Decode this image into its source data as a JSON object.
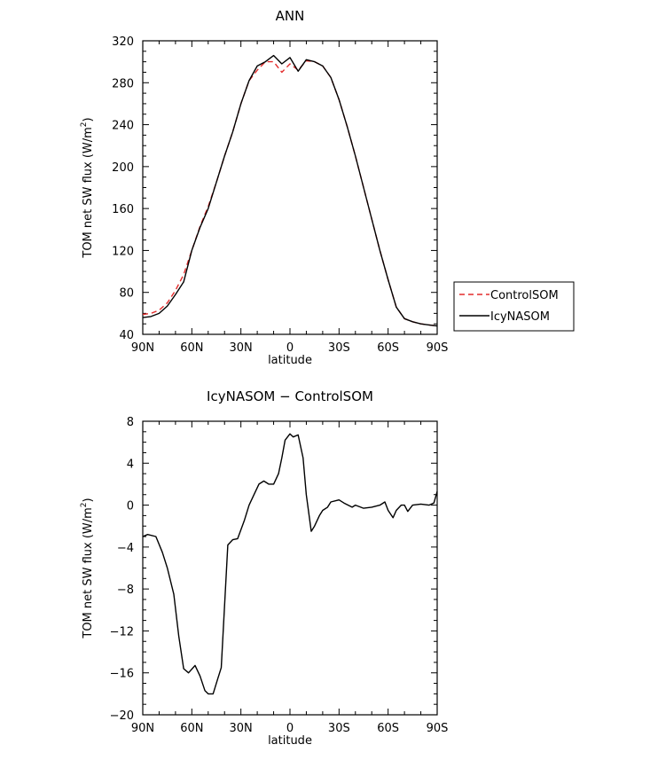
{
  "chart_data": [
    {
      "type": "line",
      "title": "ANN",
      "xlabel": "latitude",
      "ylabel": "TOM net SW flux (W/m²)",
      "ylabel_parts": {
        "main": "TOM net SW flux (W/m",
        "sup": "2",
        "close": ")"
      },
      "xlim": [
        -90,
        90
      ],
      "ylim": [
        40,
        320
      ],
      "x_ticks": [
        -90,
        -60,
        -30,
        0,
        30,
        60,
        90
      ],
      "x_tick_labels": [
        "90N",
        "60N",
        "30N",
        "0",
        "30S",
        "60S",
        "90S"
      ],
      "y_ticks": [
        40,
        80,
        120,
        160,
        200,
        240,
        280,
        320
      ],
      "y_tick_labels": [
        "40",
        "80",
        "120",
        "160",
        "200",
        "240",
        "280",
        "320"
      ],
      "legend_position": "right",
      "series": [
        {
          "name": "ControlSOM",
          "color": "#e32b2b",
          "dash": "dashed",
          "x": [
            -90,
            -85,
            -80,
            -75,
            -70,
            -65,
            -60,
            -55,
            -50,
            -45,
            -40,
            -35,
            -30,
            -25,
            -20,
            -15,
            -10,
            -5,
            0,
            5,
            10,
            15,
            20,
            25,
            30,
            35,
            40,
            45,
            50,
            55,
            60,
            65,
            70,
            75,
            80,
            85,
            90
          ],
          "y": [
            59,
            60,
            63,
            70,
            82,
            97,
            120,
            143,
            162,
            185,
            210,
            233,
            260,
            282,
            292,
            300,
            300,
            290,
            298,
            292,
            301,
            300,
            296,
            285,
            264,
            238,
            210,
            180,
            150,
            120,
            92,
            66,
            55,
            52,
            50,
            49,
            48
          ]
        },
        {
          "name": "IcyNASOM",
          "color": "#000000",
          "dash": "solid",
          "x": [
            -90,
            -85,
            -80,
            -75,
            -70,
            -65,
            -60,
            -55,
            -50,
            -45,
            -40,
            -35,
            -30,
            -25,
            -20,
            -15,
            -10,
            -5,
            0,
            5,
            10,
            15,
            20,
            25,
            30,
            35,
            40,
            45,
            50,
            55,
            60,
            65,
            70,
            75,
            80,
            85,
            90
          ],
          "y": [
            56,
            57,
            60,
            67,
            78,
            90,
            120,
            142,
            160,
            185,
            210,
            233,
            260,
            282,
            296,
            300,
            306,
            298,
            304,
            291,
            302,
            300,
            296,
            285,
            264,
            238,
            210,
            180,
            150,
            120,
            92,
            66,
            55,
            52,
            50,
            49,
            48
          ]
        }
      ]
    },
    {
      "type": "line",
      "title": "IcyNASOM − ControlSOM",
      "xlabel": "latitude",
      "ylabel": "TOM net SW flux (W/m²)",
      "ylabel_parts": {
        "main": "TOM net SW flux (W/m",
        "sup": "2",
        "close": ")"
      },
      "xlim": [
        -90,
        90
      ],
      "ylim": [
        -20,
        8
      ],
      "x_ticks": [
        -90,
        -60,
        -30,
        0,
        30,
        60,
        90
      ],
      "x_tick_labels": [
        "90N",
        "60N",
        "30N",
        "0",
        "30S",
        "60S",
        "90S"
      ],
      "y_ticks": [
        -20,
        -16,
        -12,
        -8,
        -4,
        0,
        4,
        8
      ],
      "y_tick_labels": [
        "−20",
        "−16",
        "−12",
        "−8",
        "−4",
        "0",
        "4",
        "8"
      ],
      "series": [
        {
          "color": "#000000",
          "dash": "solid",
          "x": [
            -90,
            -87,
            -82,
            -78,
            -75,
            -71,
            -68,
            -65,
            -62,
            -58,
            -55,
            -52,
            -50,
            -47,
            -44,
            -42,
            -38,
            -35,
            -32,
            -28,
            -25,
            -22,
            -19,
            -16,
            -13,
            -10,
            -7,
            -5,
            -3,
            0,
            2,
            5,
            8,
            10,
            13,
            15,
            18,
            20,
            23,
            25,
            30,
            33,
            38,
            40,
            45,
            50,
            55,
            58,
            60,
            63,
            65,
            68,
            70,
            72,
            75,
            80,
            85,
            88,
            90
          ],
          "y": [
            -3.0,
            -2.8,
            -3.0,
            -4.5,
            -6.0,
            -8.5,
            -12.5,
            -15.6,
            -16.0,
            -15.3,
            -16.3,
            -17.7,
            -18.0,
            -18.0,
            -16.5,
            -15.5,
            -3.8,
            -3.3,
            -3.2,
            -1.5,
            0.0,
            1.0,
            2.0,
            2.3,
            2.0,
            2.0,
            3.0,
            4.5,
            6.2,
            6.8,
            6.5,
            6.7,
            4.5,
            1.0,
            -2.5,
            -2.0,
            -1.0,
            -0.5,
            -0.2,
            0.3,
            0.5,
            0.2,
            -0.2,
            0.0,
            -0.3,
            -0.2,
            0.0,
            0.3,
            -0.5,
            -1.2,
            -0.5,
            0.0,
            0.0,
            -0.6,
            0.0,
            0.1,
            0.0,
            0.2,
            1.3
          ]
        }
      ]
    }
  ]
}
